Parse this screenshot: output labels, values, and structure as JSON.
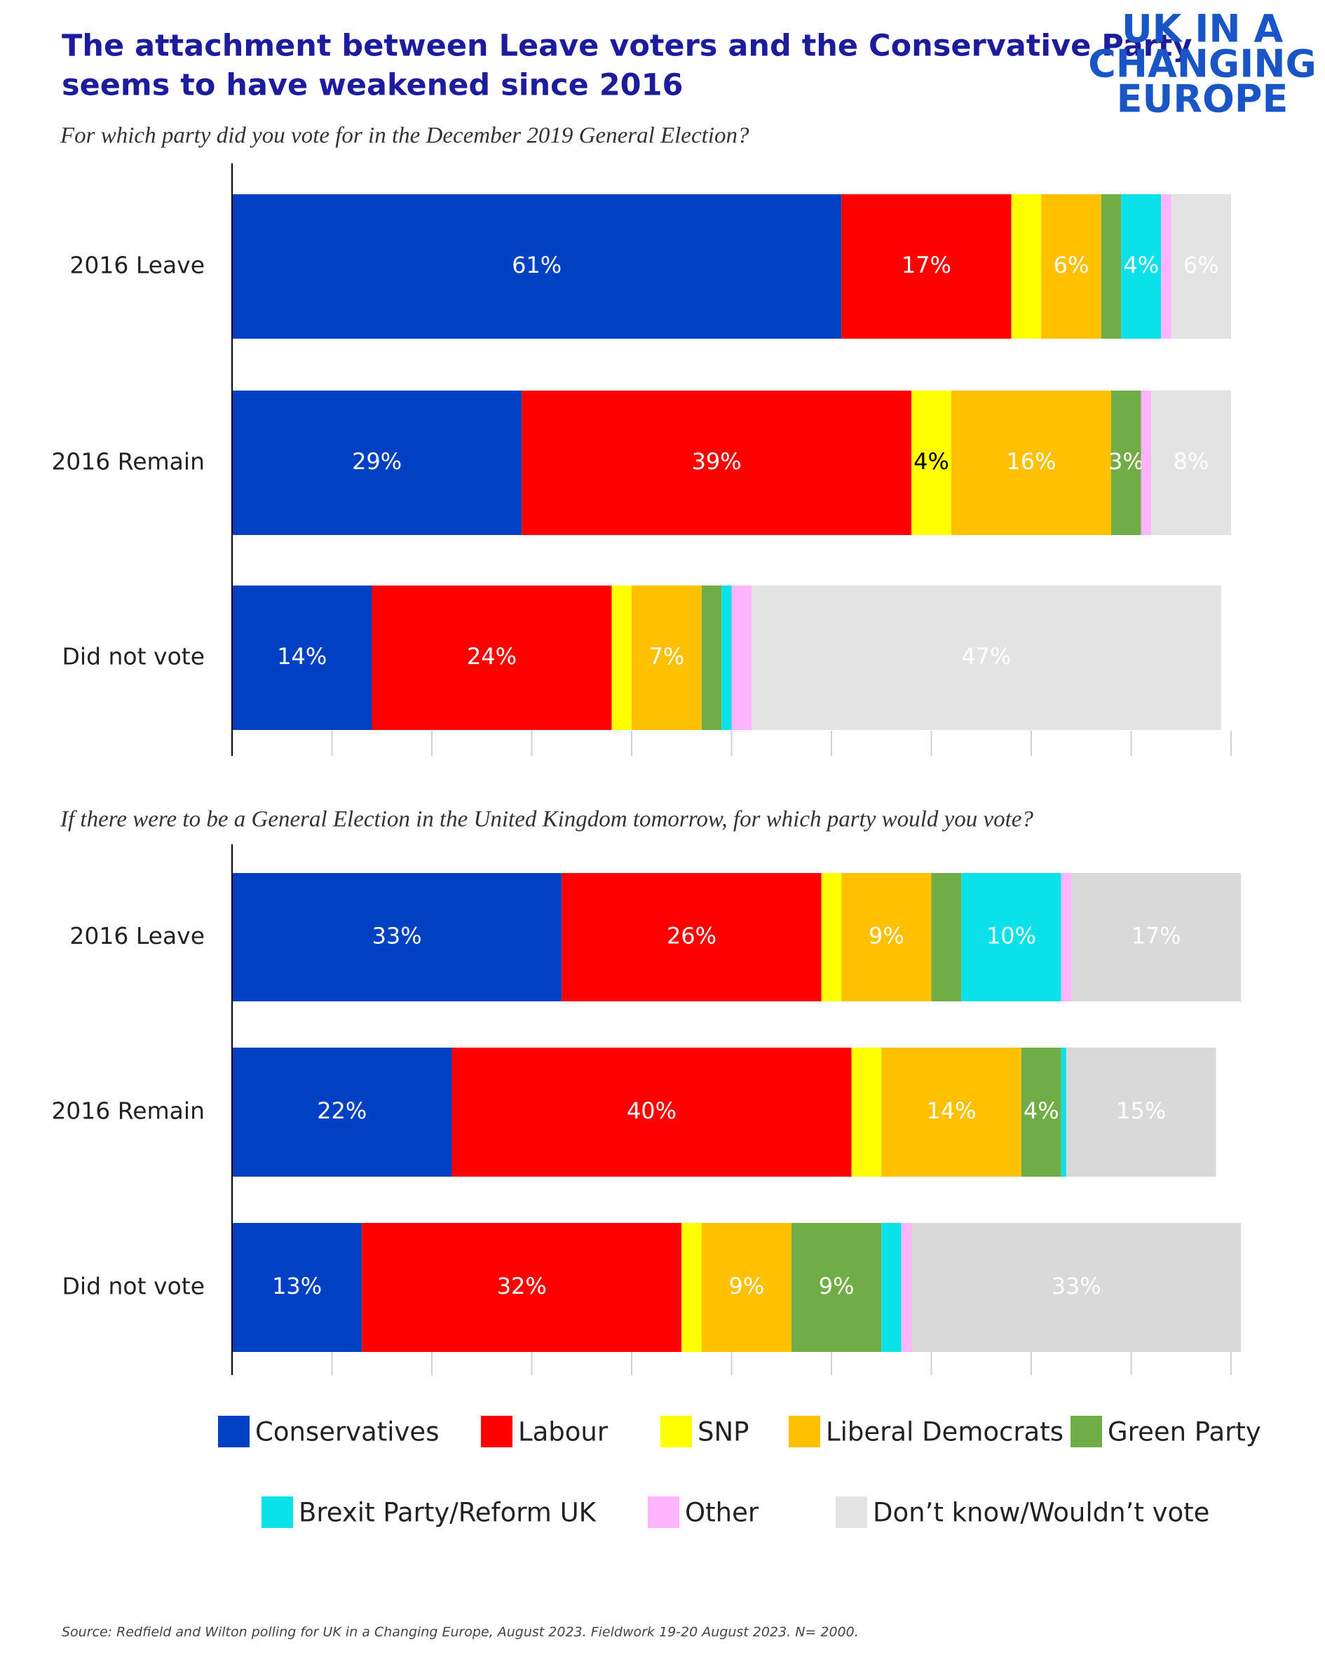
{
  "title": [
    "The attachment between Leave voters and the Conservative Party",
    "seems to have weakened since 2016"
  ],
  "logo": [
    "UK IN A",
    "CHANGING",
    "EUROPE"
  ],
  "source": "Source: Redfield and Wilton polling for UK in a Changing Europe, August 2023. Fieldwork 19-20 August 2023. N= 2000.",
  "chart_data": [
    {
      "type": "bar",
      "orientation": "horizontal",
      "stacked": true,
      "subtitle": "For which party did you vote for in the December 2019 General Election?",
      "categories": [
        "2016 Leave",
        "2016 Remain",
        "Did not vote"
      ],
      "xlim": [
        0,
        100
      ],
      "xticks": [
        0,
        10,
        20,
        30,
        40,
        50,
        60,
        70,
        80,
        90,
        100
      ],
      "series": [
        {
          "name": "Conservatives",
          "color": "#0041c4",
          "values": [
            61,
            29,
            14
          ],
          "value_labels": [
            "61%",
            "29%",
            "14%"
          ]
        },
        {
          "name": "Labour",
          "color": "#ff0000",
          "values": [
            17,
            39,
            24
          ],
          "value_labels": [
            "17%",
            "39%",
            "24%"
          ]
        },
        {
          "name": "SNP",
          "color": "#ffff00",
          "values": [
            3,
            4,
            2
          ],
          "value_labels": [
            null,
            "4%",
            null
          ]
        },
        {
          "name": "Liberal Democrats",
          "color": "#ffc000",
          "values": [
            6,
            16,
            7
          ],
          "value_labels": [
            "6%",
            "16%",
            "7%"
          ]
        },
        {
          "name": "Green Party",
          "color": "#70ad47",
          "values": [
            2,
            3,
            2
          ],
          "value_labels": [
            null,
            "3%",
            null
          ]
        },
        {
          "name": "Brexit Party/Reform UK",
          "color": "#0ae1e8",
          "values": [
            4,
            0,
            1
          ],
          "value_labels": [
            "4%",
            null,
            null
          ]
        },
        {
          "name": "Other",
          "color": "#ffb4ff",
          "values": [
            1,
            1,
            2
          ],
          "value_labels": [
            null,
            null,
            null
          ]
        },
        {
          "name": "Don’t know/Wouldn’t vote",
          "color": "#e3e3e3",
          "values": [
            6,
            8,
            47
          ],
          "value_labels": [
            "6%",
            "8%",
            "47%"
          ]
        }
      ]
    },
    {
      "type": "bar",
      "orientation": "horizontal",
      "stacked": true,
      "subtitle": "If there were to be a General Election in the United Kingdom tomorrow, for which party would you vote?",
      "categories": [
        "2016 Leave",
        "2016 Remain",
        "Did not vote"
      ],
      "xlim": [
        0,
        100
      ],
      "xticks": [
        0,
        10,
        20,
        30,
        40,
        50,
        60,
        70,
        80,
        90,
        100
      ],
      "series": [
        {
          "name": "Conservatives",
          "color": "#0041c4",
          "values": [
            33,
            22,
            13
          ],
          "value_labels": [
            "33%",
            "22%",
            "13%"
          ]
        },
        {
          "name": "Labour",
          "color": "#ff0000",
          "values": [
            26,
            40,
            32
          ],
          "value_labels": [
            "26%",
            "40%",
            "32%"
          ]
        },
        {
          "name": "SNP",
          "color": "#ffff00",
          "values": [
            2,
            3,
            2
          ],
          "value_labels": [
            null,
            null,
            null
          ]
        },
        {
          "name": "Liberal Democrats",
          "color": "#ffc000",
          "values": [
            9,
            14,
            9
          ],
          "value_labels": [
            "9%",
            "14%",
            "9%"
          ]
        },
        {
          "name": "Green Party",
          "color": "#70ad47",
          "values": [
            3,
            4,
            9
          ],
          "value_labels": [
            null,
            "4%",
            "9%"
          ]
        },
        {
          "name": "Brexit Party/Reform UK",
          "color": "#0ae1e8",
          "values": [
            10,
            0.5,
            2
          ],
          "value_labels": [
            "10%",
            null,
            null
          ]
        },
        {
          "name": "Other",
          "color": "#ffb4ff",
          "values": [
            1,
            0,
            1
          ],
          "value_labels": [
            null,
            null,
            null
          ]
        },
        {
          "name": "Don’t know/Wouldn’t vote",
          "color": "#d9d9d9",
          "values": [
            17,
            15,
            33
          ],
          "value_labels": [
            "17%",
            "15%",
            "33%"
          ]
        }
      ]
    }
  ]
}
